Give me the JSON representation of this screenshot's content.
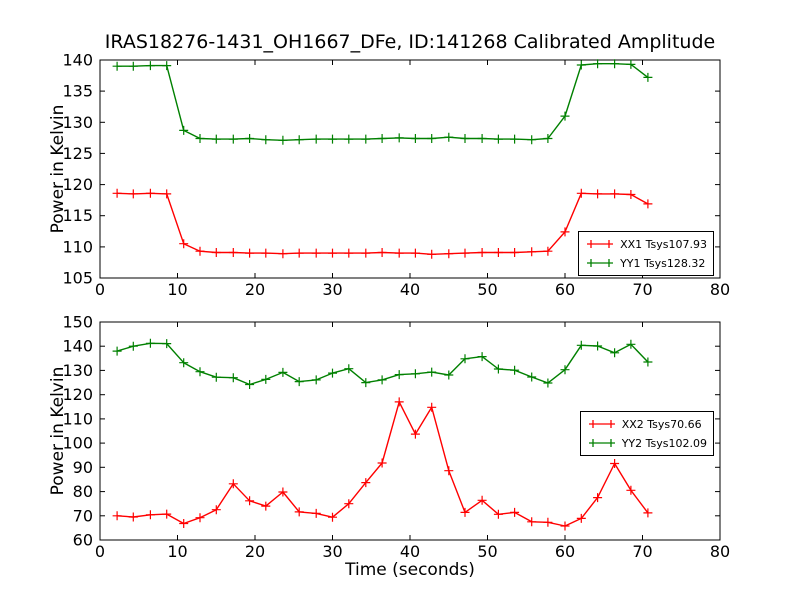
{
  "title": "IRAS18276-1431_OH1667_DFe, ID:141268 Calibrated Amplitude",
  "xlabel": "Time (seconds)",
  "colors": {
    "xx": "#ff0000",
    "yy": "#008000",
    "frame": "#000000",
    "background": "#ffffff"
  },
  "chart_data": [
    {
      "type": "line",
      "subplot": "top",
      "ylabel": "Power in Kelvin",
      "xlim": [
        0,
        80
      ],
      "ylim": [
        105,
        140
      ],
      "xticks": [
        0,
        10,
        20,
        30,
        40,
        50,
        60,
        70,
        80
      ],
      "yticks": [
        105,
        110,
        115,
        120,
        125,
        130,
        135,
        140
      ],
      "marker": "+",
      "grid": false,
      "legend_position": "lower right",
      "x": [
        2.2,
        4.3,
        6.5,
        8.6,
        10.8,
        12.9,
        15.0,
        17.2,
        19.3,
        21.4,
        23.6,
        25.7,
        27.9,
        30.0,
        32.1,
        34.3,
        36.4,
        38.6,
        40.7,
        42.8,
        45.0,
        47.1,
        49.3,
        51.4,
        53.5,
        55.7,
        57.8,
        60.0,
        62.1,
        64.2,
        66.4,
        68.5,
        70.7
      ],
      "series": [
        {
          "name": "XX1 Tsys107.93",
          "color": "#ff0000",
          "values": [
            118.6,
            118.5,
            118.6,
            118.5,
            110.5,
            109.3,
            109.1,
            109.1,
            109.0,
            109.0,
            108.9,
            109.0,
            109.0,
            109.0,
            109.0,
            109.0,
            109.1,
            109.0,
            109.0,
            108.8,
            108.9,
            109.0,
            109.1,
            109.1,
            109.1,
            109.2,
            109.3,
            112.4,
            118.6,
            118.5,
            118.5,
            118.4,
            116.9
          ]
        },
        {
          "name": "YY1 Tsys128.32",
          "color": "#008000",
          "values": [
            139.0,
            139.0,
            139.1,
            139.1,
            128.7,
            127.4,
            127.3,
            127.3,
            127.4,
            127.2,
            127.1,
            127.2,
            127.3,
            127.3,
            127.3,
            127.3,
            127.4,
            127.5,
            127.4,
            127.4,
            127.6,
            127.4,
            127.4,
            127.3,
            127.3,
            127.2,
            127.4,
            131.0,
            139.2,
            139.4,
            139.4,
            139.3,
            137.2
          ]
        }
      ]
    },
    {
      "type": "line",
      "subplot": "bottom",
      "ylabel": "Power in Kelvin",
      "xlim": [
        0,
        80
      ],
      "ylim": [
        60,
        150
      ],
      "xticks": [
        0,
        10,
        20,
        30,
        40,
        50,
        60,
        70,
        80
      ],
      "yticks": [
        60,
        70,
        80,
        90,
        100,
        110,
        120,
        130,
        140,
        150
      ],
      "marker": "+",
      "grid": false,
      "legend_position": "center right",
      "x": [
        2.2,
        4.3,
        6.5,
        8.6,
        10.8,
        12.9,
        15.0,
        17.2,
        19.3,
        21.4,
        23.6,
        25.7,
        27.9,
        30.0,
        32.1,
        34.3,
        36.4,
        38.6,
        40.7,
        42.8,
        45.0,
        47.1,
        49.3,
        51.4,
        53.5,
        55.7,
        57.8,
        60.0,
        62.1,
        64.2,
        66.4,
        68.5,
        70.7
      ],
      "series": [
        {
          "name": "XX2 Tsys70.66",
          "color": "#ff0000",
          "values": [
            70.0,
            69.5,
            70.4,
            70.7,
            66.8,
            69.2,
            72.5,
            83.2,
            76.2,
            74.0,
            79.8,
            71.6,
            71.0,
            69.4,
            75.0,
            83.7,
            91.8,
            117.0,
            103.7,
            114.8,
            88.6,
            71.4,
            76.4,
            70.6,
            71.4,
            67.5,
            67.3,
            65.8,
            68.9,
            77.5,
            91.6,
            80.5,
            71.2
          ]
        },
        {
          "name": "YY2 Tsys102.09",
          "color": "#008000",
          "values": [
            138.0,
            140.0,
            141.2,
            141.1,
            133.2,
            129.5,
            127.2,
            127.0,
            124.2,
            126.3,
            129.2,
            125.4,
            126.1,
            128.9,
            130.7,
            125.0,
            126.1,
            128.3,
            128.6,
            129.3,
            128.1,
            134.8,
            135.7,
            130.6,
            130.1,
            127.3,
            124.8,
            130.3,
            140.4,
            140.1,
            137.3,
            140.8,
            133.5
          ]
        }
      ]
    }
  ]
}
